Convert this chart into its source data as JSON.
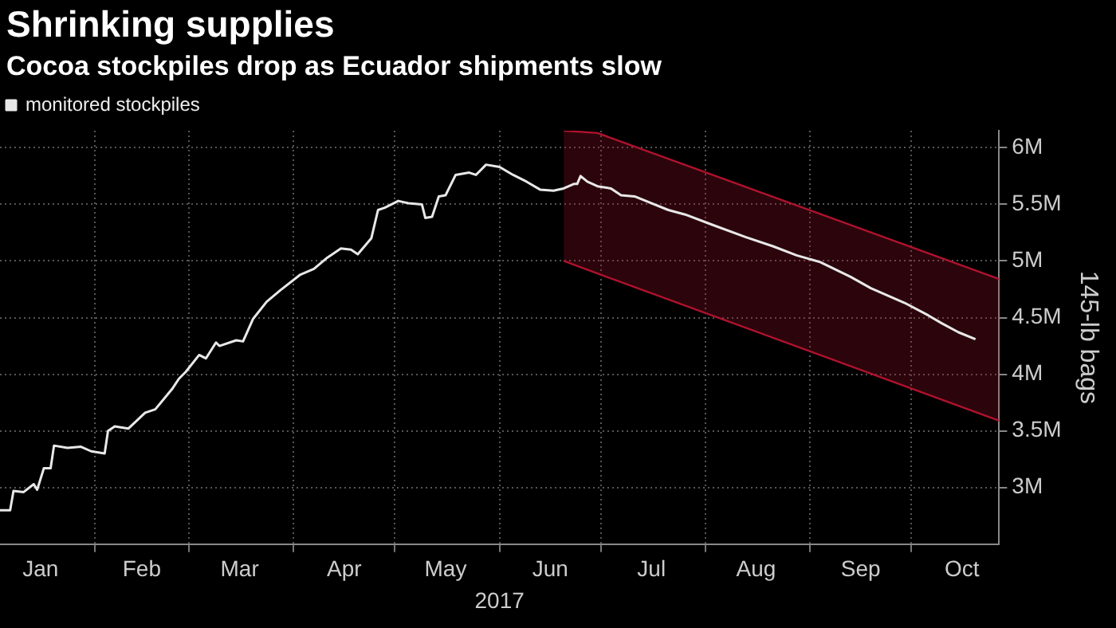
{
  "chart_data": {
    "type": "line",
    "title": "Shrinking supplies",
    "subtitle": "Cocoa stockpiles drop as Ecuador shipments slow",
    "xlabel": "2017",
    "ylabel": "145-lb bags",
    "xlim": [
      "2017-01-04",
      "2017-10-27"
    ],
    "xticks": [
      {
        "value": "2017-01-16",
        "label": "Jan"
      },
      {
        "value": "2017-02-01",
        "label": null
      },
      {
        "value": "2017-02-15",
        "label": "Feb"
      },
      {
        "value": "2017-03-01",
        "label": null
      },
      {
        "value": "2017-03-16",
        "label": "Mar"
      },
      {
        "value": "2017-04-01",
        "label": null
      },
      {
        "value": "2017-04-16",
        "label": "Apr"
      },
      {
        "value": "2017-05-01",
        "label": null
      },
      {
        "value": "2017-05-16",
        "label": "May"
      },
      {
        "value": "2017-06-01",
        "label": null
      },
      {
        "value": "2017-06-16",
        "label": "Jun"
      },
      {
        "value": "2017-07-01",
        "label": null
      },
      {
        "value": "2017-07-16",
        "label": "Jul"
      },
      {
        "value": "2017-08-01",
        "label": null
      },
      {
        "value": "2017-08-16",
        "label": "Aug"
      },
      {
        "value": "2017-09-01",
        "label": null
      },
      {
        "value": "2017-09-16",
        "label": "Sep"
      },
      {
        "value": "2017-10-01",
        "label": null
      },
      {
        "value": "2017-10-16",
        "label": "Oct"
      }
    ],
    "ylim": [
      2.5,
      6.15
    ],
    "yticks": [
      {
        "value": 3,
        "label": "3M"
      },
      {
        "value": 3.5,
        "label": "3.5M"
      },
      {
        "value": 4,
        "label": "4M"
      },
      {
        "value": 4.5,
        "label": "4.5M"
      },
      {
        "value": 5,
        "label": "5M"
      },
      {
        "value": 5.5,
        "label": "5.5M"
      },
      {
        "value": 6,
        "label": "6M"
      }
    ],
    "grid": true,
    "legend": "top left",
    "marker": "none",
    "line_style": "solid",
    "series": [
      {
        "name": "monitored stockpiles",
        "color": "#e8e8e8",
        "x": [
          "2017-01-04",
          "2017-01-07",
          "2017-01-08",
          "2017-01-11",
          "2017-01-14",
          "2017-01-15",
          "2017-01-17",
          "2017-01-19",
          "2017-01-20",
          "2017-01-24",
          "2017-01-28",
          "2017-01-31",
          "2017-02-04",
          "2017-02-05",
          "2017-02-07",
          "2017-02-11",
          "2017-02-16",
          "2017-02-19",
          "2017-02-24",
          "2017-02-26",
          "2017-02-28",
          "2017-03-04",
          "2017-03-06",
          "2017-03-09",
          "2017-03-10",
          "2017-03-15",
          "2017-03-17",
          "2017-03-20",
          "2017-03-24",
          "2017-03-28",
          "2017-04-03",
          "2017-04-07",
          "2017-04-11",
          "2017-04-15",
          "2017-04-18",
          "2017-04-20",
          "2017-04-24",
          "2017-04-26",
          "2017-04-28",
          "2017-05-02",
          "2017-05-05",
          "2017-05-09",
          "2017-05-10",
          "2017-05-12",
          "2017-05-14",
          "2017-05-16",
          "2017-05-19",
          "2017-05-23",
          "2017-05-25",
          "2017-05-28",
          "2017-06-01",
          "2017-06-05",
          "2017-06-09",
          "2017-06-13",
          "2017-06-17",
          "2017-06-20",
          "2017-06-23",
          "2017-06-24",
          "2017-06-25",
          "2017-06-27",
          "2017-06-30",
          "2017-07-04",
          "2017-07-07",
          "2017-07-11",
          "2017-07-21",
          "2017-07-26",
          "2017-08-03",
          "2017-08-13",
          "2017-08-21",
          "2017-08-28",
          "2017-09-04",
          "2017-09-13",
          "2017-09-19",
          "2017-09-29",
          "2017-10-06",
          "2017-10-10",
          "2017-10-15",
          "2017-10-20"
        ],
        "values": [
          2.8,
          2.8,
          2.97,
          2.96,
          3.03,
          2.98,
          3.17,
          3.17,
          3.37,
          3.35,
          3.36,
          3.32,
          3.3,
          3.5,
          3.54,
          3.52,
          3.66,
          3.69,
          3.87,
          3.96,
          4.02,
          4.17,
          4.14,
          4.28,
          4.25,
          4.3,
          4.29,
          4.49,
          4.64,
          4.74,
          4.88,
          4.93,
          5.03,
          5.11,
          5.1,
          5.06,
          5.2,
          5.45,
          5.47,
          5.53,
          5.51,
          5.5,
          5.38,
          5.39,
          5.57,
          5.58,
          5.76,
          5.78,
          5.76,
          5.85,
          5.83,
          5.76,
          5.7,
          5.63,
          5.62,
          5.64,
          5.68,
          5.68,
          5.75,
          5.7,
          5.66,
          5.64,
          5.58,
          5.57,
          5.45,
          5.41,
          5.32,
          5.21,
          5.13,
          5.05,
          4.99,
          4.86,
          4.76,
          4.63,
          4.52,
          4.45,
          4.37,
          4.31
        ]
      },
      {
        "color": "#b0122e",
        "x": [
          "2017-06-20",
          "2017-06-30",
          "2017-10-27"
        ],
        "values": [
          6.15,
          6.13,
          4.84
        ]
      },
      {
        "color": "#b0122e",
        "x": [
          "2017-06-20",
          "2017-06-30",
          "2017-10-27"
        ],
        "values": [
          5.0,
          4.89,
          3.59
        ],
        "lower": [
          5.0,
          4.89,
          3.59
        ],
        "upper": [
          6.15,
          6.13,
          4.84
        ]
      }
    ]
  }
}
